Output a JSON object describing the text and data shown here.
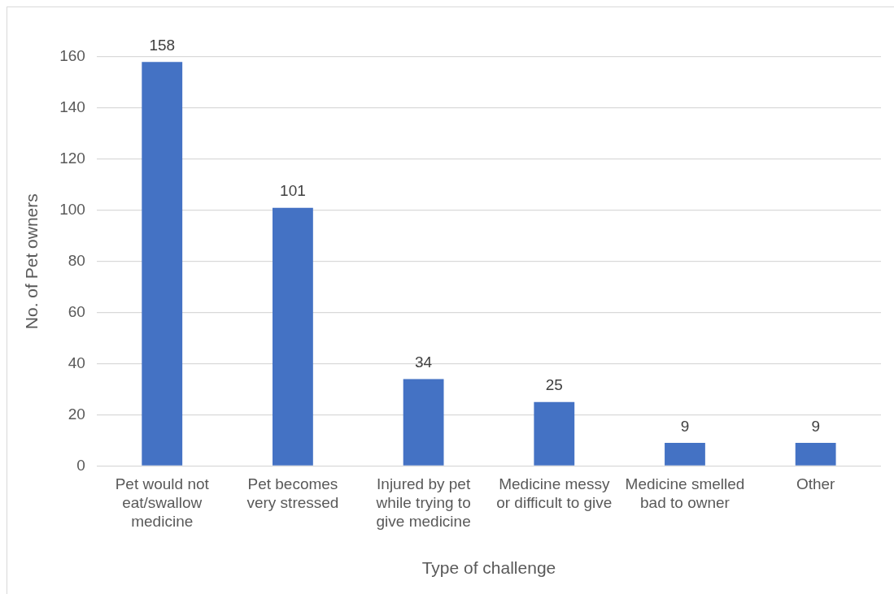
{
  "chart_data": {
    "type": "bar",
    "categories": [
      "Pet would not eat/swallow medicine",
      "Pet becomes very stressed",
      "Injured by pet while trying to give medicine",
      "Medicine messy or difficult to give",
      "Medicine smelled bad to owner",
      "Other"
    ],
    "values": [
      158,
      101,
      34,
      25,
      9,
      9
    ],
    "color": "#4472c4",
    "xlabel": "Type of challenge",
    "ylabel": "No. of Pet owners",
    "ylim": [
      0,
      160
    ],
    "yticks": [
      0,
      20,
      40,
      60,
      80,
      100,
      120,
      140,
      160
    ],
    "grid": "y",
    "legend": false,
    "data_labels": true
  }
}
